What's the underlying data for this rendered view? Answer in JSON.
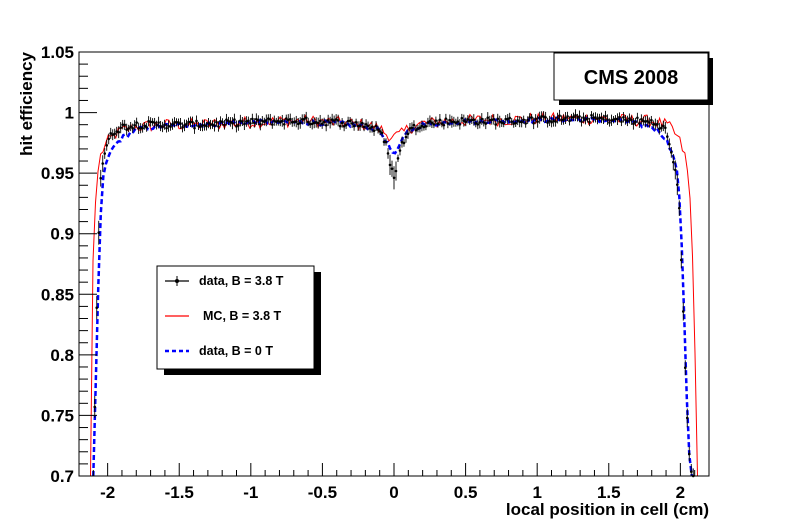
{
  "chart_data": {
    "type": "line",
    "title": "CMS 2008",
    "xlabel": "local position in cell (cm)",
    "ylabel": "hit efficiency",
    "xlim": [
      -2.2,
      2.2
    ],
    "ylim": [
      0.7,
      1.05
    ],
    "x_ticks": [
      -2,
      -1.5,
      -1,
      -0.5,
      0,
      0.5,
      1,
      1.5,
      2
    ],
    "x_tick_labels": [
      "-2",
      "-1.5",
      "-1",
      "-0.5",
      "0",
      "0.5",
      "1",
      "1.5",
      "2"
    ],
    "y_ticks": [
      0.7,
      0.75,
      0.8,
      0.85,
      0.9,
      0.95,
      1,
      1.05
    ],
    "y_tick_labels": [
      "0.7",
      "0.75",
      "0.8",
      "0.85",
      "0.9",
      "0.95",
      "1",
      "1.05"
    ],
    "legend_position": "left-middle",
    "series": [
      {
        "name": "data, B = 3.8 T",
        "style": "markers-with-error-bars",
        "color": "#000000",
        "x": [
          -2.09,
          -2.07,
          -2.05,
          -2.03,
          -2.01,
          -1.99,
          -1.97,
          -1.95,
          -1.9,
          -1.8,
          -1.6,
          -1.4,
          -1.2,
          -1.0,
          -0.8,
          -0.6,
          -0.4,
          -0.2,
          -0.1,
          -0.05,
          -0.02,
          0.0,
          0.02,
          0.05,
          0.1,
          0.2,
          0.4,
          0.6,
          0.8,
          1.0,
          1.2,
          1.4,
          1.6,
          1.8,
          1.85,
          1.9,
          1.95,
          1.97,
          1.99,
          2.01,
          2.03,
          2.05,
          2.07,
          2.09
        ],
        "values": [
          0.76,
          0.875,
          0.945,
          0.962,
          0.972,
          0.978,
          0.982,
          0.985,
          0.988,
          0.99,
          0.99,
          0.99,
          0.991,
          0.992,
          0.993,
          0.993,
          0.992,
          0.99,
          0.985,
          0.972,
          0.955,
          0.945,
          0.958,
          0.972,
          0.985,
          0.991,
          0.993,
          0.993,
          0.993,
          0.994,
          0.995,
          0.995,
          0.994,
          0.992,
          0.99,
          0.985,
          0.96,
          0.947,
          0.93,
          0.87,
          0.8,
          0.74,
          0.705,
          0.7
        ]
      },
      {
        "name": "MC, B = 3.8 T",
        "style": "line",
        "color": "#ff0000",
        "x": [
          -2.12,
          -2.11,
          -2.1,
          -2.08,
          -2.06,
          -2.04,
          -2.02,
          -2.0,
          -1.95,
          -1.9,
          -1.8,
          -1.6,
          -1.4,
          -1.2,
          -1.0,
          -0.8,
          -0.6,
          -0.4,
          -0.2,
          -0.1,
          -0.05,
          0.0,
          0.05,
          0.1,
          0.2,
          0.4,
          0.6,
          0.8,
          1.0,
          1.2,
          1.4,
          1.6,
          1.8,
          1.9,
          1.95,
          2.0,
          2.03,
          2.06,
          2.08,
          2.1,
          2.11,
          2.12
        ],
        "values": [
          0.7,
          0.82,
          0.895,
          0.935,
          0.96,
          0.968,
          0.972,
          0.976,
          0.982,
          0.985,
          0.988,
          0.99,
          0.99,
          0.991,
          0.992,
          0.993,
          0.993,
          0.992,
          0.99,
          0.987,
          0.982,
          0.98,
          0.982,
          0.987,
          0.991,
          0.993,
          0.994,
          0.994,
          0.995,
          0.995,
          0.995,
          0.994,
          0.993,
          0.99,
          0.985,
          0.975,
          0.965,
          0.945,
          0.9,
          0.82,
          0.74,
          0.7
        ]
      },
      {
        "name": "data, B = 0 T",
        "style": "dashed-line",
        "color": "#0000ff",
        "x": [
          -2.1,
          -2.08,
          -2.06,
          -2.04,
          -2.02,
          -2.0,
          -1.98,
          -1.95,
          -1.9,
          -1.85,
          -1.8,
          -1.6,
          -1.4,
          -1.2,
          -1.0,
          -0.8,
          -0.6,
          -0.4,
          -0.2,
          -0.1,
          -0.05,
          0.0,
          0.05,
          0.1,
          0.2,
          0.4,
          0.6,
          0.8,
          1.0,
          1.2,
          1.4,
          1.6,
          1.8,
          1.85,
          1.9,
          1.95,
          1.98,
          2.0,
          2.02,
          2.04,
          2.06,
          2.08
        ],
        "values": [
          0.7,
          0.79,
          0.88,
          0.94,
          0.955,
          0.962,
          0.968,
          0.973,
          0.979,
          0.983,
          0.986,
          0.989,
          0.99,
          0.991,
          0.992,
          0.992,
          0.992,
          0.991,
          0.989,
          0.985,
          0.975,
          0.965,
          0.975,
          0.985,
          0.99,
          0.992,
          0.993,
          0.993,
          0.994,
          0.994,
          0.994,
          0.993,
          0.988,
          0.985,
          0.978,
          0.965,
          0.95,
          0.92,
          0.86,
          0.78,
          0.72,
          0.7
        ]
      }
    ]
  }
}
